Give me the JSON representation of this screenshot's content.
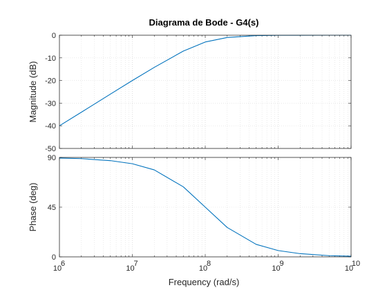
{
  "chart_data": {
    "type": "line",
    "title": "Diagrama de Bode - G4(s)",
    "xlabel": "Frequency  (rad/s)",
    "x_scale": "log",
    "xlim": [
      1000000,
      10000000000
    ],
    "x_ticks": [
      {
        "base": "10",
        "exp": "6"
      },
      {
        "base": "10",
        "exp": "7"
      },
      {
        "base": "10",
        "exp": "8"
      },
      {
        "base": "10",
        "exp": "9"
      },
      {
        "base": "10",
        "exp": "10"
      }
    ],
    "grid": "minor-dotted",
    "line_color": "#0072BD",
    "panels": [
      {
        "name": "magnitude",
        "ylabel": "Magnitude (dB)",
        "ylim": [
          -50,
          0
        ],
        "y_ticks": [
          "0",
          "-10",
          "-20",
          "-30",
          "-40",
          "-50"
        ],
        "series": [
          {
            "x": [
              1000000,
              2000000,
              5000000,
              10000000,
              20000000,
              50000000,
              100000000,
              200000000,
              500000000,
              1000000000,
              2000000000,
              5000000000,
              10000000000
            ],
            "y": [
              -40.0,
              -34.0,
              -26.0,
              -20.0,
              -14.2,
              -7.0,
              -3.0,
              -1.0,
              -0.17,
              -0.04,
              -0.01,
              0.0,
              0.0
            ]
          }
        ]
      },
      {
        "name": "phase",
        "ylabel": "Phase (deg)",
        "ylim": [
          0,
          90
        ],
        "y_ticks": [
          "90",
          "45",
          "0"
        ],
        "series": [
          {
            "x": [
              1000000,
              2000000,
              5000000,
              10000000,
              20000000,
              50000000,
              100000000,
              200000000,
              500000000,
              1000000000,
              2000000000,
              5000000000,
              10000000000
            ],
            "y": [
              89.4,
              88.9,
              87.1,
              84.3,
              78.7,
              63.4,
              45.0,
              26.6,
              11.3,
              5.7,
              2.9,
              1.1,
              0.6
            ]
          }
        ]
      }
    ]
  }
}
